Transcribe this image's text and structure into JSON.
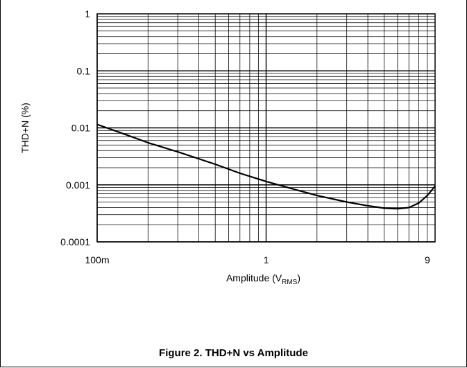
{
  "caption": "Figure 2. THD+N vs Amplitude",
  "chart_data": {
    "type": "line",
    "title": "",
    "xlabel": {
      "main": "Amplitude (V",
      "sub": "RMS",
      "close": ")"
    },
    "ylabel": "THD+N (%)",
    "xscale": "log",
    "yscale": "log",
    "xlim": [
      0.1,
      10
    ],
    "ylim": [
      0.0001,
      1
    ],
    "grid": true,
    "legend": "none",
    "x_ticks": [
      {
        "value": 0.1,
        "label": "100m"
      },
      {
        "value": 1,
        "label": "1"
      },
      {
        "value": 9,
        "label": "9"
      }
    ],
    "y_ticks": [
      {
        "value": 1,
        "label": "1"
      },
      {
        "value": 0.1,
        "label": "0.1"
      },
      {
        "value": 0.01,
        "label": "0.01"
      },
      {
        "value": 0.001,
        "label": "0.001"
      },
      {
        "value": 0.0001,
        "label": "0.0001"
      }
    ],
    "series": [
      {
        "color": "#000000",
        "x": [
          0.1,
          0.15,
          0.2,
          0.3,
          0.5,
          0.7,
          1.0,
          1.5,
          2.0,
          3.0,
          4.0,
          5.0,
          6.0,
          7.0,
          8.0,
          9.0,
          10.0
        ],
        "y": [
          0.0115,
          0.0075,
          0.0055,
          0.0038,
          0.0023,
          0.0016,
          0.00115,
          0.00082,
          0.00065,
          0.0005,
          0.00043,
          0.00039,
          0.00038,
          0.0004,
          0.00048,
          0.00065,
          0.00095
        ]
      }
    ]
  }
}
